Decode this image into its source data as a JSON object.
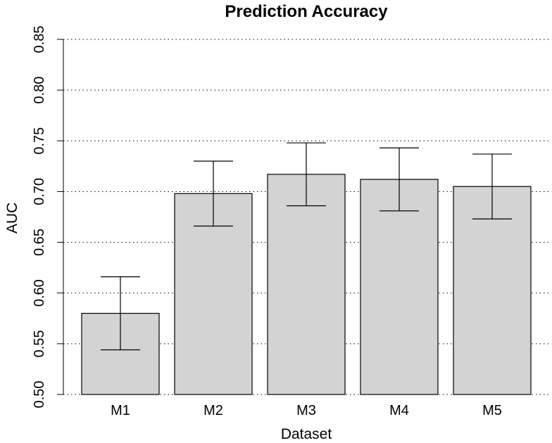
{
  "chart_data": {
    "type": "bar",
    "title": "Prediction Accuracy",
    "xlabel": "Dataset",
    "ylabel": "AUC",
    "categories": [
      "M1",
      "M2",
      "M3",
      "M4",
      "M5"
    ],
    "values": [
      0.58,
      0.698,
      0.717,
      0.712,
      0.705
    ],
    "error_low": [
      0.544,
      0.666,
      0.686,
      0.681,
      0.673
    ],
    "error_high": [
      0.616,
      0.73,
      0.748,
      0.743,
      0.737
    ],
    "ylim": [
      0.5,
      0.85
    ],
    "yticks": [
      "0.50",
      "0.55",
      "0.60",
      "0.65",
      "0.70",
      "0.75",
      "0.80",
      "0.85"
    ],
    "ytick_values": [
      0.5,
      0.55,
      0.6,
      0.65,
      0.7,
      0.75,
      0.8,
      0.85
    ],
    "grid": "horizontal dotted",
    "bar_color": "#d3d3d3",
    "edge_color": "#000000"
  }
}
